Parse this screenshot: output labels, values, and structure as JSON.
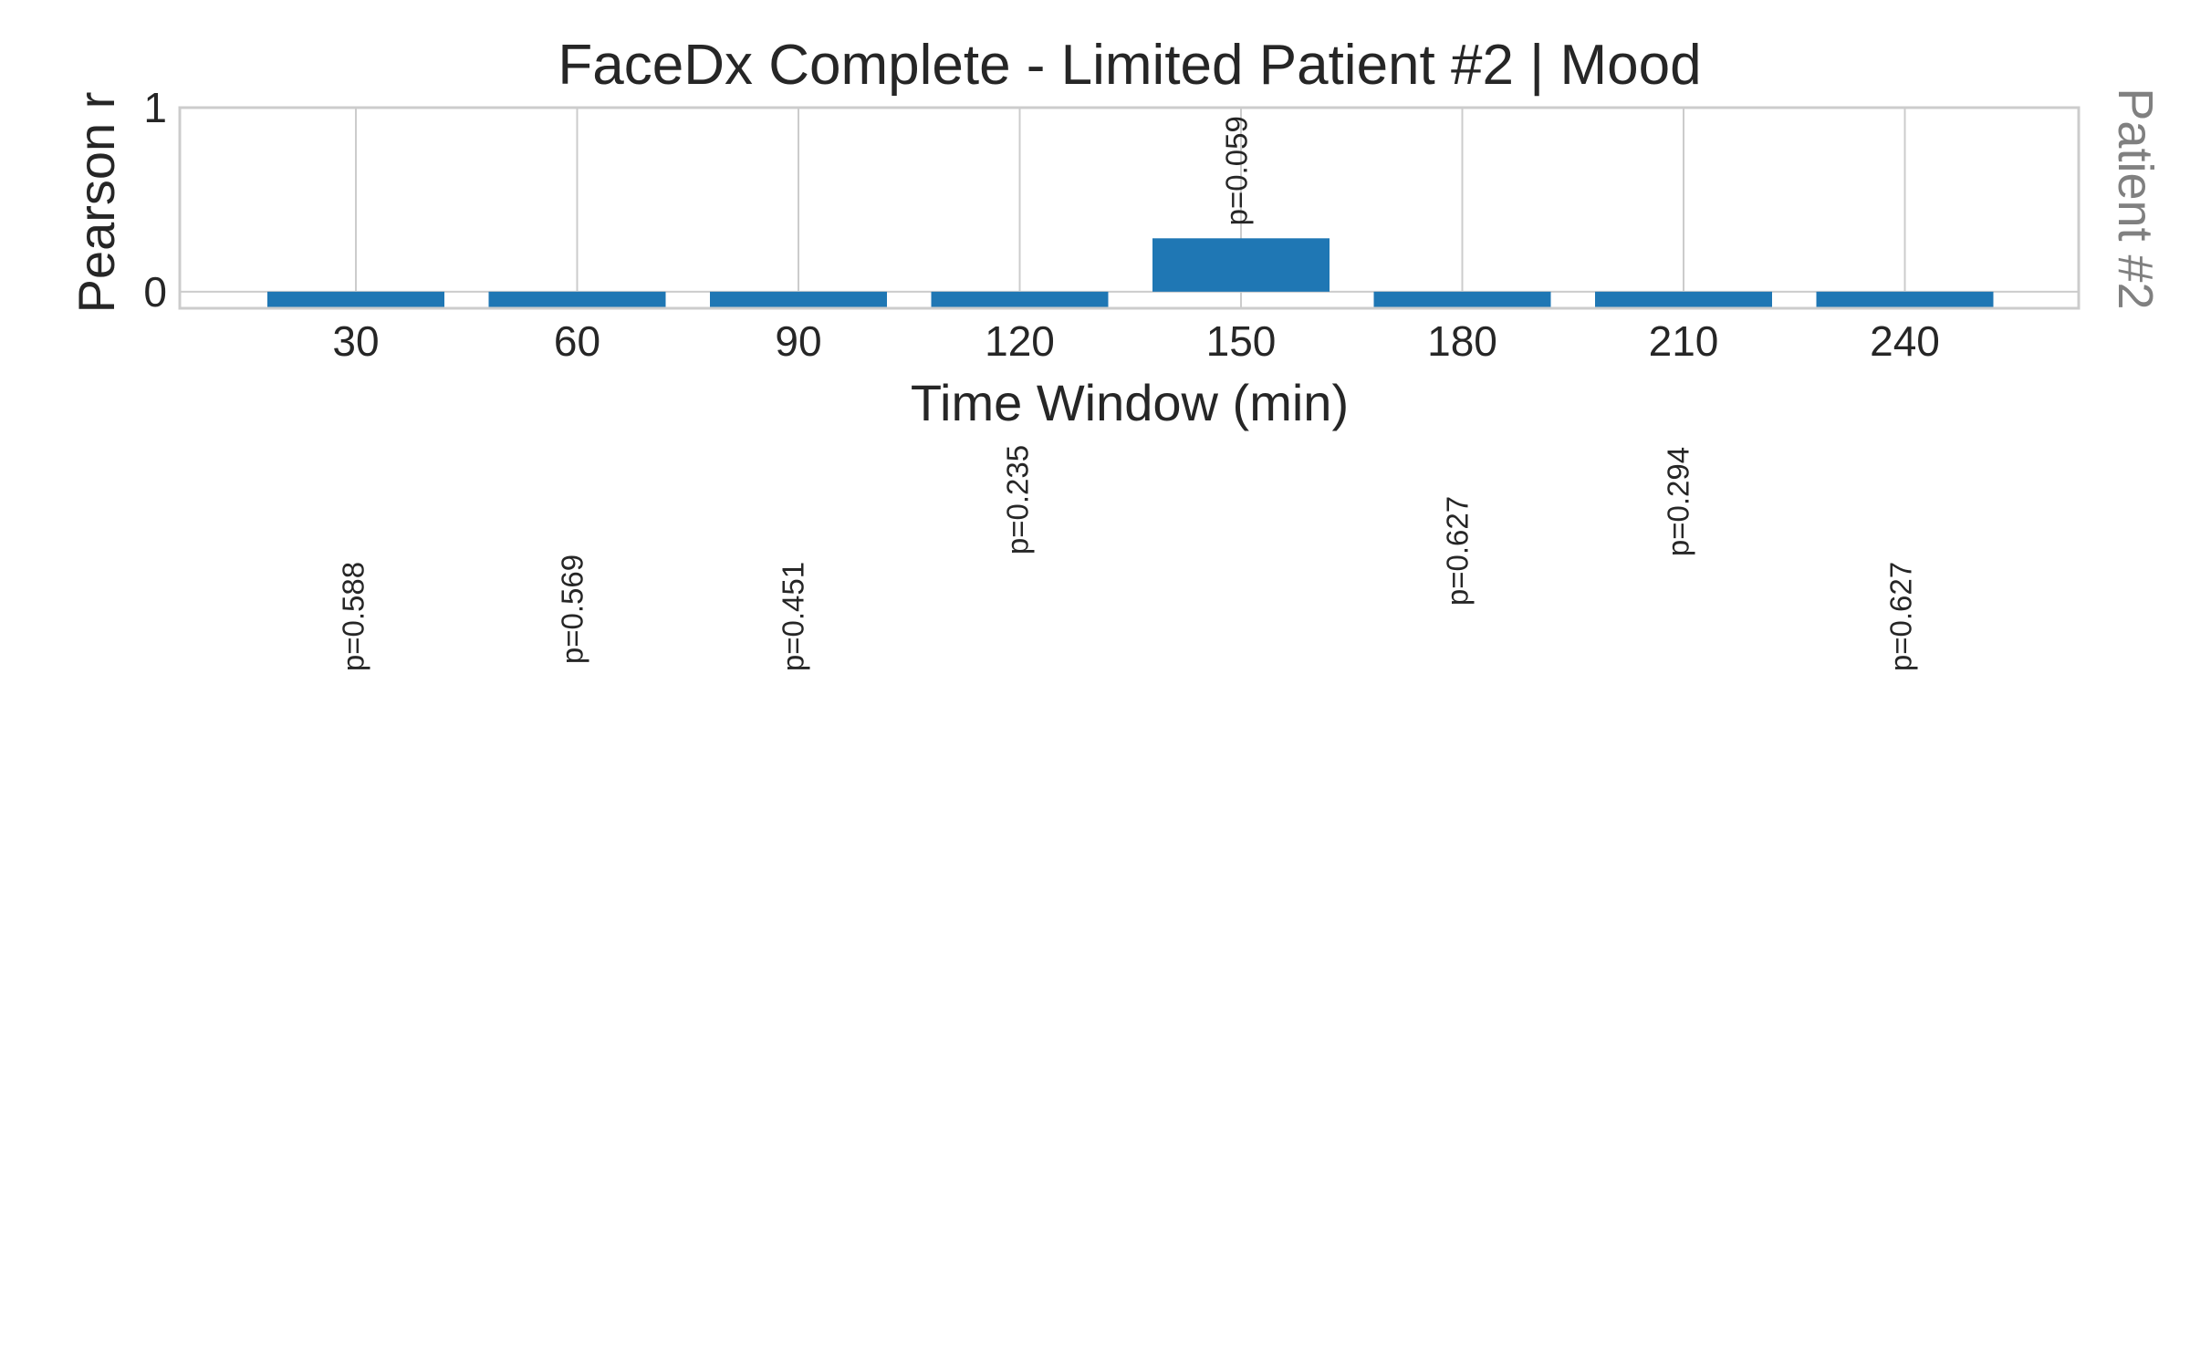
{
  "chart_data": {
    "type": "bar",
    "title": "FaceDx Complete - Limited Patient #2 | Mood",
    "xlabel": "Time Window (min)",
    "ylabel": "Pearson r",
    "side_label": "Patient #2",
    "categories": [
      "30",
      "60",
      "90",
      "120",
      "150",
      "180",
      "210",
      "240"
    ],
    "values": [
      -0.09,
      -0.09,
      -0.09,
      -0.09,
      0.29,
      -0.09,
      -0.09,
      -0.09
    ],
    "data_labels": [
      "p=0.588",
      "p=0.569",
      "p=0.451",
      "p=0.235",
      "p=0.059",
      "p=0.627",
      "p=0.294",
      "p=0.627"
    ],
    "ylim": [
      -0.09,
      1
    ],
    "yticks": [
      "0",
      "1"
    ],
    "grid": true,
    "legend": "none",
    "colors": {
      "bar": "#1f77b4",
      "grid": "#cccccc",
      "spine": "#cccccc",
      "text": "#262626",
      "side_text": "#808080"
    }
  }
}
